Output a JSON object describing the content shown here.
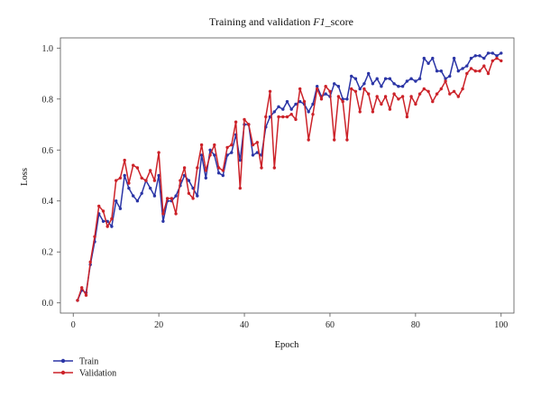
{
  "chart_data": {
    "type": "line",
    "title": "Training and validation F1_score",
    "xlabel": "Epoch",
    "ylabel": "Loss",
    "xlim": [
      -3,
      103
    ],
    "ylim": [
      -0.04,
      1.04
    ],
    "xticks": [
      0,
      20,
      40,
      60,
      80,
      100
    ],
    "yticks": [
      0.0,
      0.2,
      0.4,
      0.6,
      0.8,
      1.0
    ],
    "grid": false,
    "legend_position": "bottom-left",
    "series": [
      {
        "name": "Train",
        "color": "#2b35a6",
        "x": [
          1,
          2,
          3,
          4,
          5,
          6,
          7,
          8,
          9,
          10,
          11,
          12,
          13,
          14,
          15,
          16,
          17,
          18,
          19,
          20,
          21,
          22,
          23,
          24,
          25,
          26,
          27,
          28,
          29,
          30,
          31,
          32,
          33,
          34,
          35,
          36,
          37,
          38,
          39,
          40,
          41,
          42,
          43,
          44,
          45,
          46,
          47,
          48,
          49,
          50,
          51,
          52,
          53,
          54,
          55,
          56,
          57,
          58,
          59,
          60,
          61,
          62,
          63,
          64,
          65,
          66,
          67,
          68,
          69,
          70,
          71,
          72,
          73,
          74,
          75,
          76,
          77,
          78,
          79,
          80,
          81,
          82,
          83,
          84,
          85,
          86,
          87,
          88,
          89,
          90,
          91,
          92,
          93,
          94,
          95,
          96,
          97,
          98,
          99,
          100
        ],
        "y": [
          0.01,
          0.05,
          0.04,
          0.15,
          0.24,
          0.35,
          0.32,
          0.32,
          0.3,
          0.4,
          0.37,
          0.5,
          0.45,
          0.42,
          0.4,
          0.43,
          0.48,
          0.45,
          0.42,
          0.5,
          0.32,
          0.4,
          0.4,
          0.42,
          0.46,
          0.5,
          0.48,
          0.45,
          0.42,
          0.58,
          0.49,
          0.6,
          0.58,
          0.51,
          0.5,
          0.58,
          0.59,
          0.66,
          0.56,
          0.7,
          0.7,
          0.58,
          0.59,
          0.58,
          0.69,
          0.73,
          0.75,
          0.77,
          0.76,
          0.79,
          0.76,
          0.78,
          0.79,
          0.78,
          0.75,
          0.78,
          0.85,
          0.81,
          0.82,
          0.81,
          0.86,
          0.85,
          0.8,
          0.8,
          0.89,
          0.88,
          0.84,
          0.86,
          0.9,
          0.86,
          0.88,
          0.85,
          0.88,
          0.88,
          0.86,
          0.85,
          0.85,
          0.87,
          0.88,
          0.87,
          0.88,
          0.96,
          0.94,
          0.96,
          0.91,
          0.91,
          0.88,
          0.89,
          0.96,
          0.91,
          0.92,
          0.93,
          0.96,
          0.97,
          0.97,
          0.96,
          0.98,
          0.98,
          0.97,
          0.98
        ]
      },
      {
        "name": "Validation",
        "color": "#cc2229",
        "x": [
          1,
          2,
          3,
          4,
          5,
          6,
          7,
          8,
          9,
          10,
          11,
          12,
          13,
          14,
          15,
          16,
          17,
          18,
          19,
          20,
          21,
          22,
          23,
          24,
          25,
          26,
          27,
          28,
          29,
          30,
          31,
          32,
          33,
          34,
          35,
          36,
          37,
          38,
          39,
          40,
          41,
          42,
          43,
          44,
          45,
          46,
          47,
          48,
          49,
          50,
          51,
          52,
          53,
          54,
          55,
          56,
          57,
          58,
          59,
          60,
          61,
          62,
          63,
          64,
          65,
          66,
          67,
          68,
          69,
          70,
          71,
          72,
          73,
          74,
          75,
          76,
          77,
          78,
          79,
          80,
          81,
          82,
          83,
          84,
          85,
          86,
          87,
          88,
          89,
          90,
          91,
          92,
          93,
          94,
          95,
          96,
          97,
          98,
          99,
          100
        ],
        "y": [
          0.01,
          0.06,
          0.03,
          0.16,
          0.26,
          0.38,
          0.36,
          0.3,
          0.33,
          0.48,
          0.49,
          0.56,
          0.47,
          0.54,
          0.53,
          0.49,
          0.48,
          0.52,
          0.48,
          0.59,
          0.35,
          0.41,
          0.41,
          0.35,
          0.48,
          0.53,
          0.43,
          0.41,
          0.53,
          0.62,
          0.52,
          0.58,
          0.62,
          0.53,
          0.52,
          0.61,
          0.62,
          0.71,
          0.45,
          0.72,
          0.7,
          0.62,
          0.63,
          0.53,
          0.73,
          0.83,
          0.53,
          0.73,
          0.73,
          0.73,
          0.74,
          0.72,
          0.84,
          0.79,
          0.64,
          0.74,
          0.84,
          0.8,
          0.85,
          0.83,
          0.64,
          0.81,
          0.79,
          0.64,
          0.84,
          0.83,
          0.75,
          0.84,
          0.82,
          0.75,
          0.81,
          0.78,
          0.81,
          0.76,
          0.82,
          0.8,
          0.81,
          0.73,
          0.81,
          0.78,
          0.82,
          0.84,
          0.83,
          0.79,
          0.82,
          0.84,
          0.87,
          0.82,
          0.83,
          0.81,
          0.84,
          0.9,
          0.92,
          0.91,
          0.91,
          0.93,
          0.9,
          0.95,
          0.96,
          0.95
        ]
      }
    ]
  }
}
